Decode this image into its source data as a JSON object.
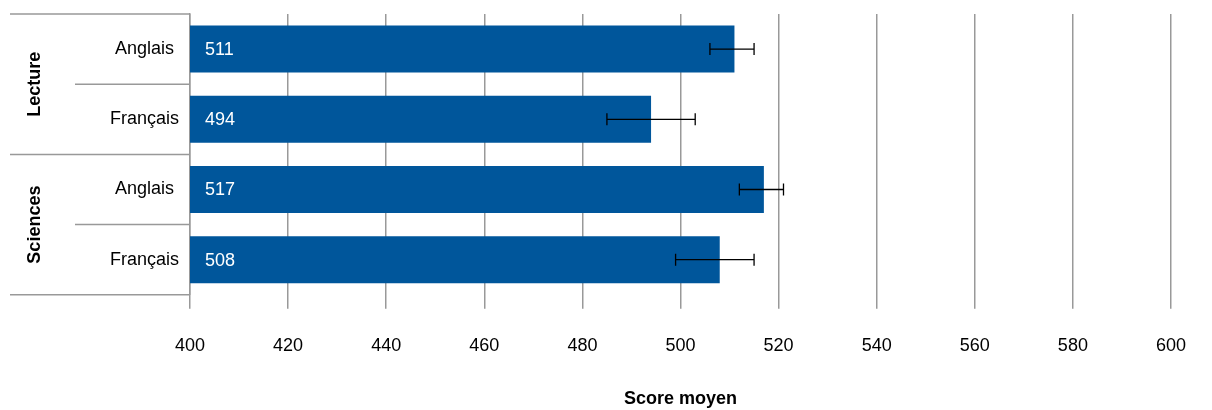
{
  "chart_data": {
    "type": "bar",
    "orientation": "horizontal",
    "xlabel": "Score moyen",
    "categories": [
      "Anglais",
      "Français",
      "Anglais",
      "Français"
    ],
    "annotations": [
      "Lecture",
      "Sciences"
    ],
    "values": [
      511,
      494,
      517,
      508
    ],
    "color": "#00569b",
    "errors": [
      [
        506,
        515
      ],
      [
        485,
        503
      ],
      [
        512,
        521
      ],
      [
        499,
        515
      ]
    ],
    "data_labels": true,
    "xlim": [
      400,
      600
    ],
    "xticks": [
      400,
      420,
      440,
      460,
      480,
      500,
      520,
      540,
      560,
      580,
      600
    ],
    "grid": "x",
    "legend": false
  }
}
